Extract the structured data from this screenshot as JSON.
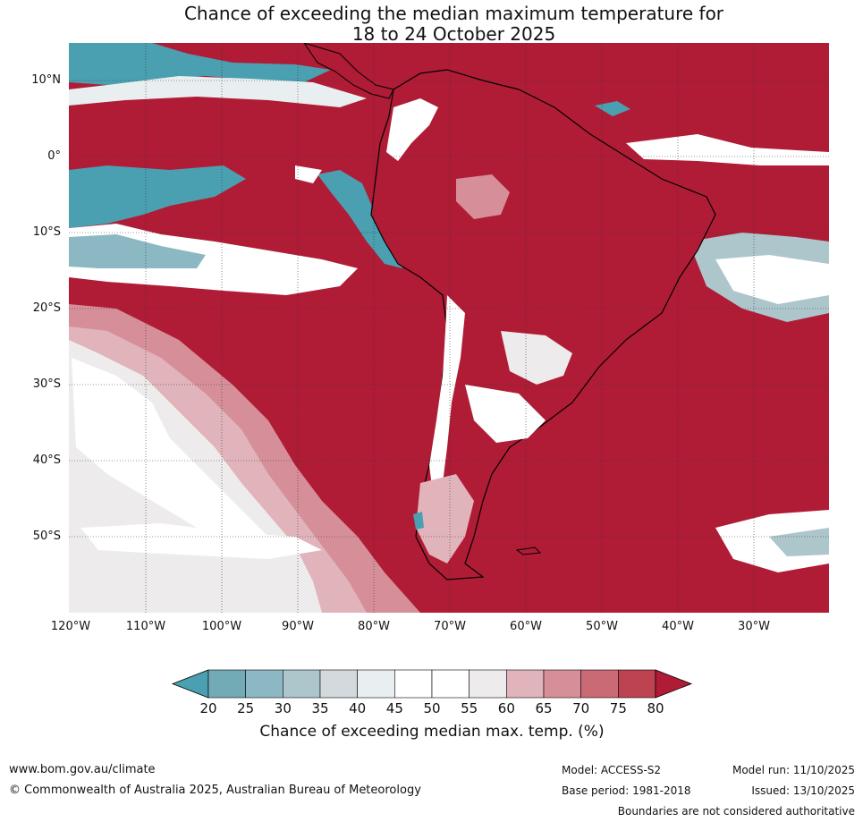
{
  "title_line1": "Chance of exceeding the median maximum temperature for",
  "title_line2": "18 to 24 October 2025",
  "lat_labels": [
    "10°N",
    "0°",
    "10°S",
    "20°S",
    "30°S",
    "40°S",
    "50°S"
  ],
  "lon_labels": [
    "120°W",
    "110°W",
    "100°W",
    "90°W",
    "80°W",
    "70°W",
    "60°W",
    "50°W",
    "40°W",
    "30°W"
  ],
  "colorbar": {
    "ticks": [
      "20",
      "25",
      "30",
      "35",
      "40",
      "45",
      "50",
      "55",
      "60",
      "65",
      "70",
      "75",
      "80"
    ],
    "colors": [
      "#4aa0b0",
      "#72aab6",
      "#8cb8c4",
      "#adc6cc",
      "#d3d9dc",
      "#e9eff1",
      "#ffffff",
      "#ffffff",
      "#eeebec",
      "#e0b4ba",
      "#d68f98",
      "#c96a74",
      "#be4350",
      "#b01c36"
    ],
    "label": "Chance of exceeding median max. temp. (%)"
  },
  "footer": {
    "website": "www.bom.gov.au/climate",
    "copyright": "© Commonwealth of Australia 2025, Australian Bureau of Meteorology",
    "model": "Model: ACCESS-S2",
    "base_period": "Base period: 1981-2018",
    "model_run": "Model run: 11/10/2025",
    "issued": "Issued: 13/10/2025",
    "disclaimer": "Boundaries are not considered authoritative"
  }
}
